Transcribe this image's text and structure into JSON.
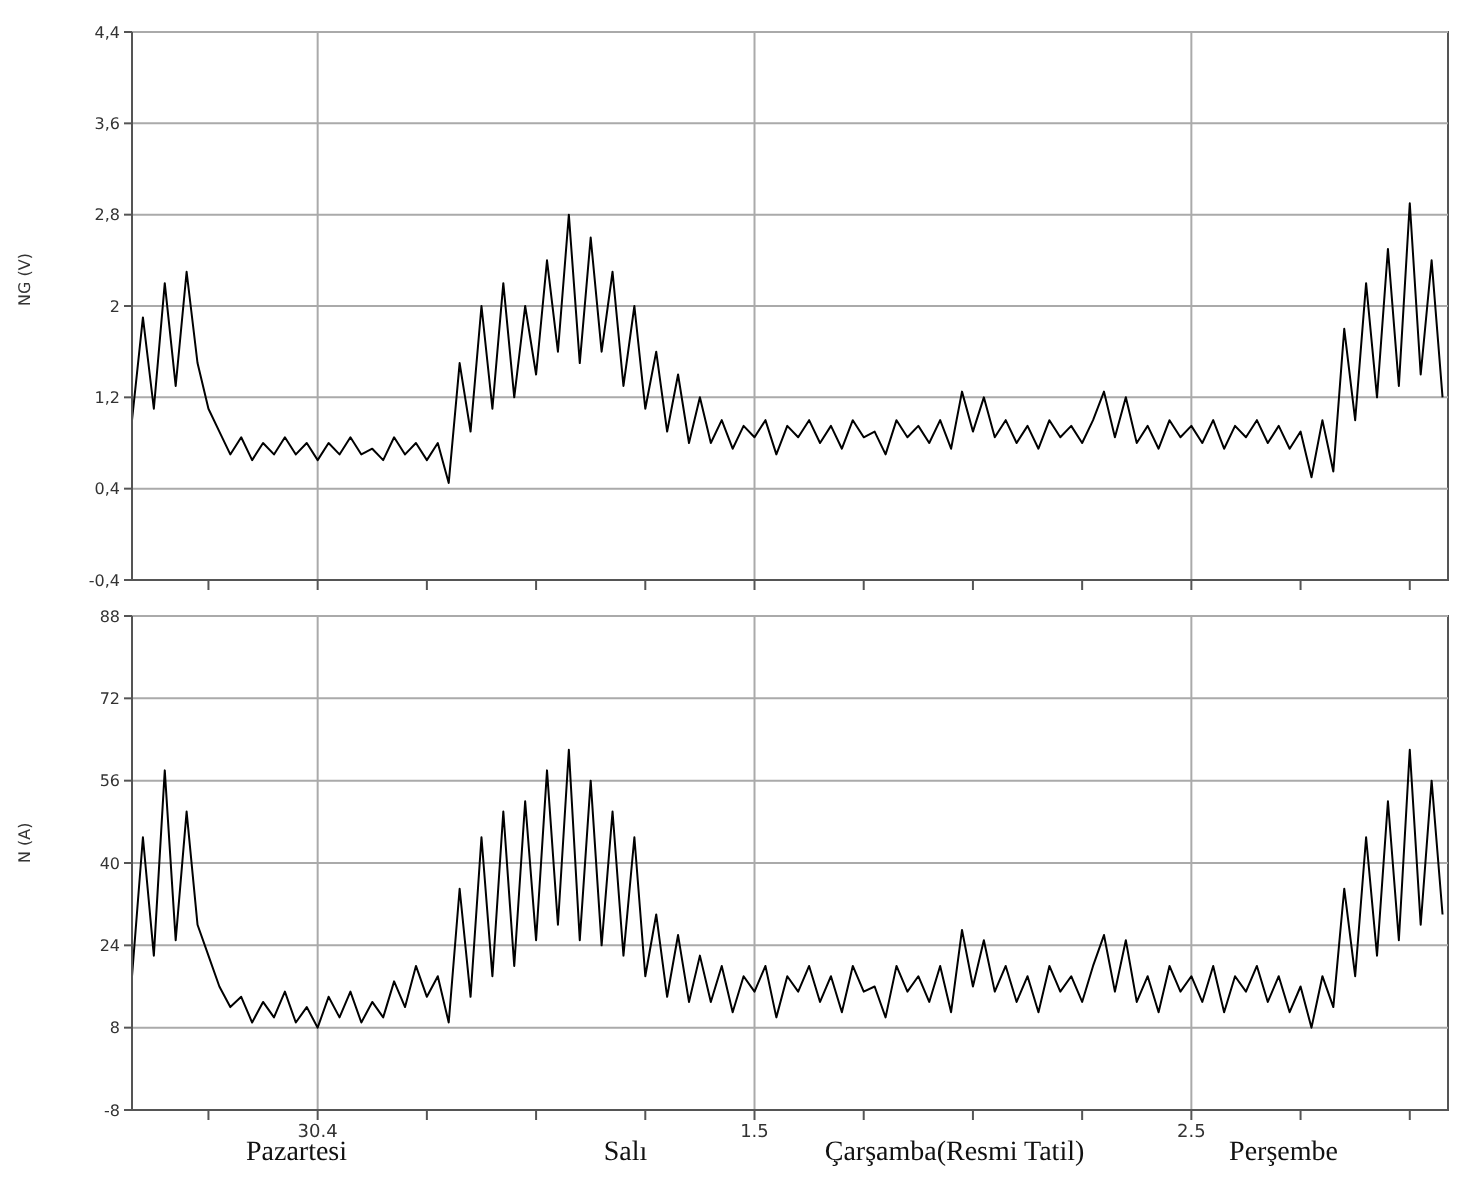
{
  "chart_data": [
    {
      "type": "line",
      "ylabel": "NG (V)",
      "ylim": [
        -0.4,
        4.4
      ],
      "categories": [
        null,
        null,
        null,
        null,
        null,
        null,
        null,
        null,
        null,
        null,
        null,
        null,
        null,
        null,
        null,
        null,
        null,
        null,
        null,
        null,
        null,
        null,
        null,
        null,
        null,
        null,
        null,
        null,
        null,
        null,
        null,
        null,
        null,
        null,
        null,
        null,
        null,
        null,
        null,
        null,
        null,
        null,
        null,
        null,
        null,
        null,
        null,
        null,
        null,
        null,
        null,
        null,
        null,
        null,
        null,
        null,
        null,
        null,
        null,
        null,
        null,
        null,
        null,
        null,
        null,
        null,
        null,
        null,
        null,
        null,
        null,
        null,
        null,
        null,
        null,
        null,
        null,
        null,
        null,
        null,
        null,
        null,
        null,
        null,
        null,
        null,
        null,
        null,
        null,
        null,
        null,
        null,
        null,
        null,
        null,
        null,
        null,
        null,
        null,
        null,
        null,
        null,
        null,
        null,
        null,
        null,
        null,
        null,
        null,
        null,
        null,
        null,
        null,
        null,
        null,
        null,
        null,
        null,
        null,
        null,
        null
      ],
      "yticks": [
        {
          "value": -0.4,
          "label": "-0,4"
        },
        {
          "value": 0.4,
          "label": "0,4"
        },
        {
          "value": 1.2,
          "label": "1,2"
        },
        2,
        {
          "value": 2.8,
          "label": "2,8"
        },
        {
          "value": 3.6,
          "label": "3,6"
        },
        {
          "value": 4.4,
          "label": "4,4"
        }
      ],
      "grid": true,
      "tick_labels": "y",
      "marker": "none",
      "line_style": "solid",
      "series": [
        {
          "color": "#000000",
          "values": [
            1.0,
            1.9,
            1.1,
            2.2,
            1.3,
            2.3,
            1.5,
            1.1,
            0.9,
            0.7,
            0.85,
            0.65,
            0.8,
            0.7,
            0.85,
            0.7,
            0.8,
            0.65,
            0.8,
            0.7,
            0.85,
            0.7,
            0.75,
            0.65,
            0.85,
            0.7,
            0.8,
            0.65,
            0.8,
            0.45,
            1.5,
            0.9,
            2.0,
            1.1,
            2.2,
            1.2,
            2.0,
            1.4,
            2.4,
            1.6,
            2.8,
            1.5,
            2.6,
            1.6,
            2.3,
            1.3,
            2.0,
            1.1,
            1.6,
            0.9,
            1.4,
            0.8,
            1.2,
            0.8,
            1.0,
            0.75,
            0.95,
            0.85,
            1.0,
            0.7,
            0.95,
            0.85,
            1.0,
            0.8,
            0.95,
            0.75,
            1.0,
            0.85,
            0.9,
            0.7,
            1.0,
            0.85,
            0.95,
            0.8,
            1.0,
            0.75,
            1.25,
            0.9,
            1.2,
            0.85,
            1.0,
            0.8,
            0.95,
            0.75,
            1.0,
            0.85,
            0.95,
            0.8,
            1.0,
            1.25,
            0.85,
            1.2,
            0.8,
            0.95,
            0.75,
            1.0,
            0.85,
            0.95,
            0.8,
            1.0,
            0.75,
            0.95,
            0.85,
            1.0,
            0.8,
            0.95,
            0.75,
            0.9,
            0.5,
            1.0,
            0.55,
            1.8,
            1.0,
            2.2,
            1.2,
            2.5,
            1.3,
            2.9,
            1.4,
            2.4,
            1.2
          ]
        }
      ]
    },
    {
      "type": "line",
      "ylabel": "N (A)",
      "ylim": [
        -8,
        88
      ],
      "categories": [
        null,
        null,
        null,
        null,
        null,
        null,
        null,
        null,
        null,
        null,
        null,
        null,
        null,
        null,
        null,
        null,
        null,
        "30.4",
        null,
        null,
        null,
        null,
        null,
        null,
        null,
        null,
        null,
        null,
        null,
        null,
        null,
        null,
        null,
        null,
        null,
        null,
        null,
        null,
        null,
        null,
        null,
        null,
        null,
        null,
        null,
        null,
        null,
        null,
        null,
        null,
        null,
        null,
        null,
        null,
        null,
        null,
        null,
        "1.5",
        null,
        null,
        null,
        null,
        null,
        null,
        null,
        null,
        null,
        null,
        null,
        null,
        null,
        null,
        null,
        null,
        null,
        null,
        null,
        null,
        null,
        null,
        null,
        null,
        null,
        null,
        null,
        null,
        null,
        null,
        null,
        null,
        null,
        null,
        null,
        null,
        null,
        null,
        null,
        "2.5",
        null,
        null,
        null,
        null,
        null,
        null,
        null,
        null,
        null,
        null,
        null,
        null,
        null,
        null,
        null,
        null,
        null,
        null,
        null,
        null,
        null,
        null,
        null
      ],
      "yticks": [
        -8,
        8,
        24,
        40,
        56,
        72,
        88
      ],
      "grid": true,
      "marker": "none",
      "line_style": "solid",
      "annotations": [
        "Pazartesi",
        "Salı",
        "Çarşamba(Resmi Tatil)",
        "Perşembe"
      ],
      "series": [
        {
          "color": "#000000",
          "values": [
            18,
            45,
            22,
            58,
            25,
            50,
            28,
            22,
            16,
            12,
            14,
            9,
            13,
            10,
            15,
            9,
            12,
            8,
            14,
            10,
            15,
            9,
            13,
            10,
            17,
            12,
            20,
            14,
            18,
            9,
            35,
            14,
            45,
            18,
            50,
            20,
            52,
            25,
            58,
            28,
            62,
            25,
            56,
            24,
            50,
            22,
            45,
            18,
            30,
            14,
            26,
            13,
            22,
            13,
            20,
            11,
            18,
            15,
            20,
            10,
            18,
            15,
            20,
            13,
            18,
            11,
            20,
            15,
            16,
            10,
            20,
            15,
            18,
            13,
            20,
            11,
            27,
            16,
            25,
            15,
            20,
            13,
            18,
            11,
            20,
            15,
            18,
            13,
            20,
            26,
            15,
            25,
            13,
            18,
            11,
            20,
            15,
            18,
            13,
            20,
            11,
            18,
            15,
            20,
            13,
            18,
            11,
            16,
            8,
            18,
            12,
            35,
            18,
            45,
            22,
            52,
            25,
            62,
            28,
            56,
            30
          ]
        }
      ]
    }
  ]
}
